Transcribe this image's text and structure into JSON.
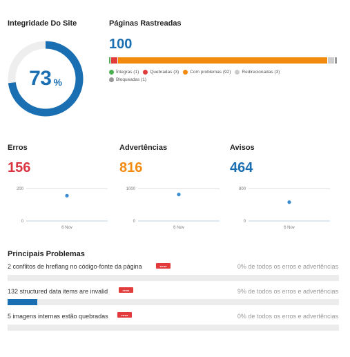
{
  "site_health": {
    "title": "Integridade Do Site",
    "value": "73",
    "unit": "%",
    "percent": 73,
    "color": "#1a6fb3",
    "track_color": "#eeeeee"
  },
  "crawled_pages": {
    "title": "Páginas Rastreadas",
    "total": "100",
    "segments": [
      {
        "label": "Íntegras (1)",
        "value": 1,
        "color": "#4caf50"
      },
      {
        "label": "Quebradas (3)",
        "value": 3,
        "color": "#e23b3b"
      },
      {
        "label": "Com problemas (92)",
        "value": 92,
        "color": "#f28a0e"
      },
      {
        "label": "Redirecionadas (3)",
        "value": 3,
        "color": "#cccccc"
      },
      {
        "label": "Bloqueadas (1)",
        "value": 1,
        "color": "#999999"
      }
    ]
  },
  "metrics": [
    {
      "title": "Erros",
      "value": "156",
      "color": "#d9333f",
      "chart_data": {
        "type": "scatter",
        "x": [
          "6 Nov"
        ],
        "values": [
          156
        ],
        "ylim": [
          0,
          200
        ],
        "yticks": [
          "200",
          "0"
        ],
        "xticks": [
          "6 Nov"
        ]
      }
    },
    {
      "title": "Advertências",
      "value": "816",
      "color": "#f28a0e",
      "chart_data": {
        "type": "scatter",
        "x": [
          "6 Nov"
        ],
        "values": [
          816
        ],
        "ylim": [
          0,
          1000
        ],
        "yticks": [
          "1000",
          "0"
        ],
        "xticks": [
          "6 Nov"
        ]
      }
    },
    {
      "title": "Avisos",
      "value": "464",
      "color": "#1a6fb3",
      "chart_data": {
        "type": "scatter",
        "x": [
          "6 Nov"
        ],
        "values": [
          464
        ],
        "ylim": [
          0,
          800
        ],
        "yticks": [
          "800",
          "0"
        ],
        "xticks": [
          "6 Nov"
        ]
      }
    }
  ],
  "top_issues": {
    "title": "Principais Problemas",
    "badge": "erros",
    "items": [
      {
        "text": "2 conflitos de hreflang no código-fonte da página",
        "share": "0% de todos os erros e advertências",
        "percent": 0
      },
      {
        "text": "132 structured data items are invalid",
        "share": "9% de todos os erros e advertências",
        "percent": 9
      },
      {
        "text": "5 imagens internas estão quebradas",
        "share": "0% de todos os erros e advertências",
        "percent": 0
      }
    ]
  }
}
